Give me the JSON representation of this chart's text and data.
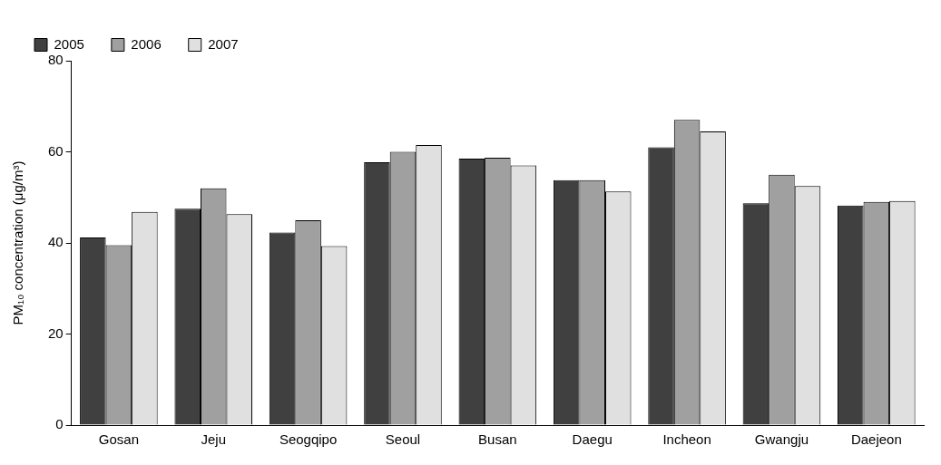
{
  "chart_data": {
    "type": "bar",
    "ylabel": "PM₁₀ concentration (μg/m³)",
    "categories": [
      "Gosan",
      "Jeju",
      "Seogqipo",
      "Seoul",
      "Busan",
      "Daegu",
      "Incheon",
      "Gwangju",
      "Daejeon"
    ],
    "series": [
      {
        "name": "2005",
        "color": "#404040",
        "values": [
          41.2,
          47.5,
          42.3,
          57.7,
          58.5,
          53.8,
          61,
          48.7,
          48.2
        ]
      },
      {
        "name": "2006",
        "color": "#a0a0a0",
        "values": [
          39.5,
          52,
          45,
          60,
          58.7,
          53.8,
          67,
          55,
          49
        ]
      },
      {
        "name": "2007",
        "color": "#e0e0e0",
        "values": [
          46.8,
          46.3,
          39.3,
          61.5,
          57,
          51.3,
          64.5,
          52.5,
          49.2
        ]
      }
    ],
    "ylim": [
      0,
      80
    ],
    "yticks": [
      0,
      20,
      40,
      60,
      80
    ],
    "grid": false,
    "legend": "top left"
  }
}
